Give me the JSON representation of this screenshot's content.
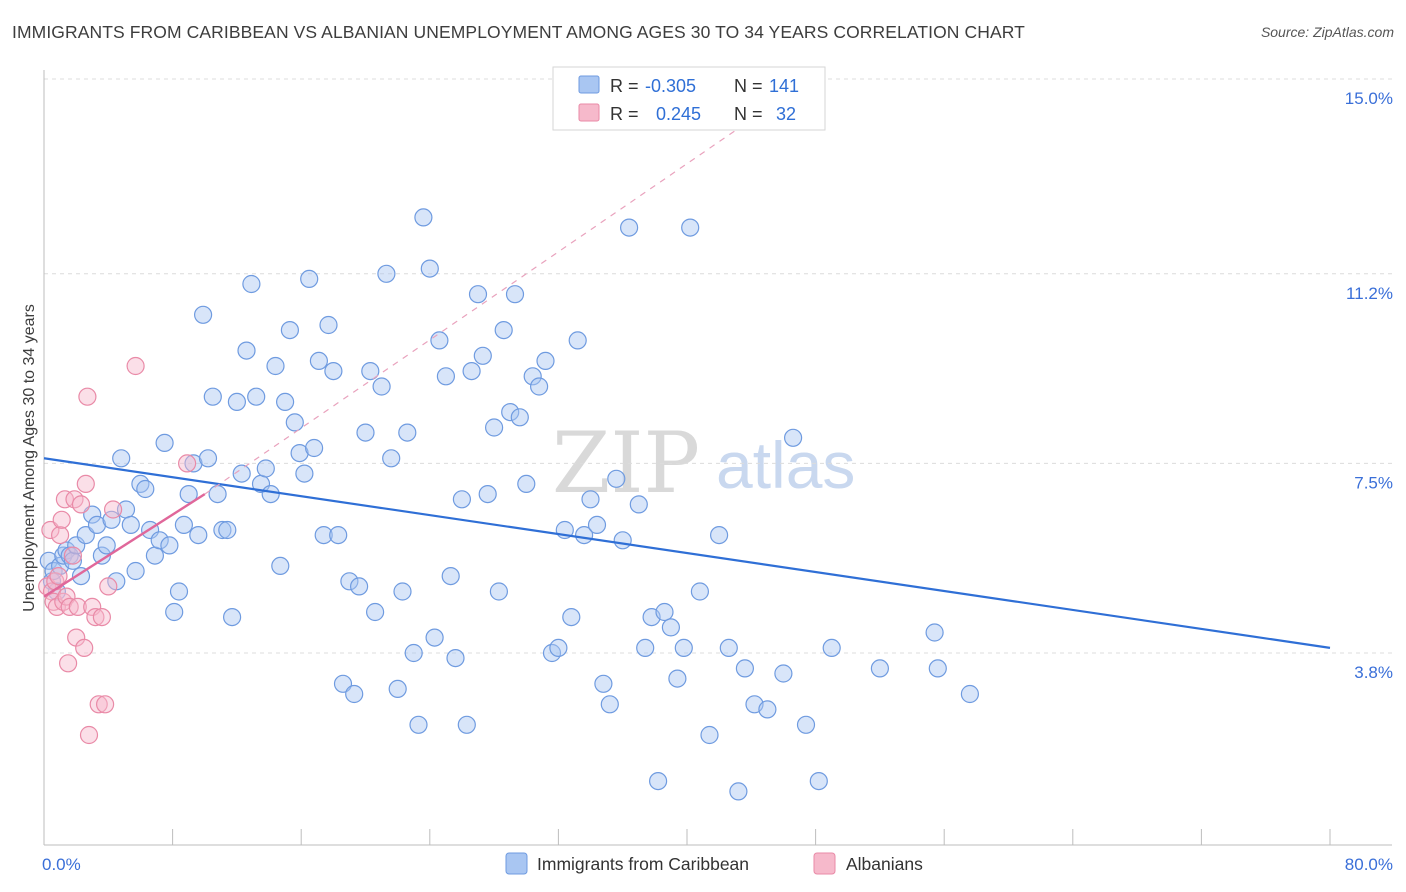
{
  "title": "IMMIGRANTS FROM CARIBBEAN VS ALBANIAN UNEMPLOYMENT AMONG AGES 30 TO 34 YEARS CORRELATION CHART",
  "source": "Source: ZipAtlas.com",
  "watermark": {
    "zip": "ZIP",
    "atlas": "atlas"
  },
  "legend_top": [
    {
      "name": "Immigrants from Caribbean",
      "r_label": "R =",
      "r_value": "-0.305",
      "n_label": "N =",
      "n_value": "141",
      "color": "#a9c6f2",
      "stroke": "#6f9be0"
    },
    {
      "name": "Albanians",
      "r_label": "R =",
      "r_value": "0.245",
      "n_label": "N =",
      "n_value": "32",
      "color": "#f6b9cb",
      "stroke": "#e98aa7"
    }
  ],
  "legend_bottom": [
    {
      "label": "Immigrants from Caribbean",
      "color": "#a9c6f2",
      "stroke": "#6f9be0"
    },
    {
      "label": "Albanians",
      "color": "#f6b9cb",
      "stroke": "#e98aa7"
    }
  ],
  "chart_data": {
    "type": "scatter",
    "title": "IMMIGRANTS FROM CARIBBEAN VS ALBANIAN UNEMPLOYMENT AMONG AGES 30 TO 34 YEARS CORRELATION CHART",
    "xlabel": "",
    "ylabel": "Unemployment Among Ages 30 to 34 years",
    "xlim": [
      0,
      80
    ],
    "ylim": [
      0,
      15.5
    ],
    "x_tick_labels": [
      "0.0%",
      "80.0%"
    ],
    "y_ticks": [
      3.8,
      7.5,
      11.2,
      15.0
    ],
    "y_tick_labels": [
      "3.8%",
      "7.5%",
      "11.2%",
      "15.0%"
    ],
    "grid": true,
    "series": [
      {
        "name": "Immigrants from Caribbean",
        "color": "#a9c6f2",
        "stroke": "#6f9be0",
        "trend": {
          "x": [
            0,
            80
          ],
          "y": [
            7.6,
            3.9
          ],
          "color": "#2f6fd6"
        },
        "points": [
          [
            0.3,
            5.6
          ],
          [
            0.5,
            5.2
          ],
          [
            0.6,
            5.4
          ],
          [
            0.8,
            5.0
          ],
          [
            1.0,
            5.5
          ],
          [
            1.2,
            5.7
          ],
          [
            1.4,
            5.8
          ],
          [
            1.6,
            5.7
          ],
          [
            1.8,
            5.6
          ],
          [
            2.0,
            5.9
          ],
          [
            2.3,
            5.3
          ],
          [
            2.6,
            6.1
          ],
          [
            3.0,
            6.5
          ],
          [
            3.3,
            6.3
          ],
          [
            3.6,
            5.7
          ],
          [
            3.9,
            5.9
          ],
          [
            4.2,
            6.4
          ],
          [
            4.5,
            5.2
          ],
          [
            4.8,
            7.6
          ],
          [
            5.1,
            6.6
          ],
          [
            5.4,
            6.3
          ],
          [
            5.7,
            5.4
          ],
          [
            6.0,
            7.1
          ],
          [
            6.3,
            7.0
          ],
          [
            6.6,
            6.2
          ],
          [
            6.9,
            5.7
          ],
          [
            7.2,
            6.0
          ],
          [
            7.5,
            7.9
          ],
          [
            7.8,
            5.9
          ],
          [
            8.1,
            4.6
          ],
          [
            8.4,
            5.0
          ],
          [
            8.7,
            6.3
          ],
          [
            9.0,
            6.9
          ],
          [
            9.3,
            7.5
          ],
          [
            9.6,
            6.1
          ],
          [
            9.9,
            10.4
          ],
          [
            10.2,
            7.6
          ],
          [
            10.5,
            8.8
          ],
          [
            10.8,
            6.9
          ],
          [
            11.1,
            6.2
          ],
          [
            11.4,
            6.2
          ],
          [
            11.7,
            4.5
          ],
          [
            12.0,
            8.7
          ],
          [
            12.3,
            7.3
          ],
          [
            12.6,
            9.7
          ],
          [
            12.9,
            11.0
          ],
          [
            13.2,
            8.8
          ],
          [
            13.5,
            7.1
          ],
          [
            13.8,
            7.4
          ],
          [
            14.1,
            6.9
          ],
          [
            14.4,
            9.4
          ],
          [
            14.7,
            5.5
          ],
          [
            15.0,
            8.7
          ],
          [
            15.3,
            10.1
          ],
          [
            15.6,
            8.3
          ],
          [
            15.9,
            7.7
          ],
          [
            16.2,
            7.3
          ],
          [
            16.5,
            11.1
          ],
          [
            16.8,
            7.8
          ],
          [
            17.1,
            9.5
          ],
          [
            17.4,
            6.1
          ],
          [
            17.7,
            10.2
          ],
          [
            18.0,
            9.3
          ],
          [
            18.3,
            6.1
          ],
          [
            18.6,
            3.2
          ],
          [
            19.0,
            5.2
          ],
          [
            19.3,
            3.0
          ],
          [
            19.6,
            5.1
          ],
          [
            20.0,
            8.1
          ],
          [
            20.3,
            9.3
          ],
          [
            20.6,
            4.6
          ],
          [
            21.0,
            9.0
          ],
          [
            21.3,
            11.2
          ],
          [
            21.6,
            7.6
          ],
          [
            22.0,
            3.1
          ],
          [
            22.3,
            5.0
          ],
          [
            22.6,
            8.1
          ],
          [
            23.0,
            3.8
          ],
          [
            23.3,
            2.4
          ],
          [
            23.6,
            12.3
          ],
          [
            24.0,
            11.3
          ],
          [
            24.3,
            4.1
          ],
          [
            24.6,
            9.9
          ],
          [
            25.0,
            9.2
          ],
          [
            25.3,
            5.3
          ],
          [
            25.6,
            3.7
          ],
          [
            26.0,
            6.8
          ],
          [
            26.3,
            2.4
          ],
          [
            26.6,
            9.3
          ],
          [
            27.0,
            10.8
          ],
          [
            27.3,
            9.6
          ],
          [
            27.6,
            6.9
          ],
          [
            28.0,
            8.2
          ],
          [
            28.3,
            5.0
          ],
          [
            28.6,
            10.1
          ],
          [
            29.0,
            8.5
          ],
          [
            29.3,
            10.8
          ],
          [
            29.6,
            8.4
          ],
          [
            30.0,
            7.1
          ],
          [
            30.4,
            9.2
          ],
          [
            30.8,
            9.0
          ],
          [
            31.2,
            9.5
          ],
          [
            31.6,
            3.8
          ],
          [
            32.0,
            3.9
          ],
          [
            32.4,
            6.2
          ],
          [
            32.8,
            4.5
          ],
          [
            33.2,
            9.9
          ],
          [
            33.6,
            6.1
          ],
          [
            34.0,
            6.8
          ],
          [
            34.4,
            6.3
          ],
          [
            34.8,
            3.2
          ],
          [
            35.2,
            2.8
          ],
          [
            35.6,
            7.2
          ],
          [
            36.0,
            6.0
          ],
          [
            36.4,
            12.1
          ],
          [
            37.0,
            6.7
          ],
          [
            37.4,
            3.9
          ],
          [
            37.8,
            4.5
          ],
          [
            38.2,
            1.3
          ],
          [
            38.6,
            4.6
          ],
          [
            39.0,
            4.3
          ],
          [
            39.4,
            3.3
          ],
          [
            39.8,
            3.9
          ],
          [
            40.2,
            12.1
          ],
          [
            40.8,
            5.0
          ],
          [
            41.4,
            2.2
          ],
          [
            42.0,
            6.1
          ],
          [
            42.6,
            3.9
          ],
          [
            43.2,
            1.1
          ],
          [
            43.6,
            3.5
          ],
          [
            44.2,
            2.8
          ],
          [
            45.0,
            2.7
          ],
          [
            46.0,
            3.4
          ],
          [
            46.6,
            8.0
          ],
          [
            47.4,
            2.4
          ],
          [
            48.2,
            1.3
          ],
          [
            49.0,
            3.9
          ],
          [
            52.0,
            3.5
          ],
          [
            55.4,
            4.2
          ],
          [
            55.6,
            3.5
          ],
          [
            57.6,
            3.0
          ]
        ]
      },
      {
        "name": "Albanians",
        "color": "#f6b9cb",
        "stroke": "#e98aa7",
        "trend": {
          "x": [
            0,
            10
          ],
          "y": [
            4.9,
            6.9
          ],
          "color": "#e0679a"
        },
        "trend_extended": {
          "x": [
            10,
            43.5
          ],
          "y": [
            6.9,
            14.1
          ],
          "color": "#e9a2bd"
        },
        "points": [
          [
            0.2,
            5.1
          ],
          [
            0.4,
            6.2
          ],
          [
            0.5,
            5.0
          ],
          [
            0.6,
            4.8
          ],
          [
            0.7,
            5.2
          ],
          [
            0.8,
            4.7
          ],
          [
            0.9,
            5.3
          ],
          [
            1.0,
            6.1
          ],
          [
            1.1,
            6.4
          ],
          [
            1.2,
            4.8
          ],
          [
            1.3,
            6.8
          ],
          [
            1.4,
            4.9
          ],
          [
            1.5,
            3.6
          ],
          [
            1.6,
            4.7
          ],
          [
            1.8,
            5.7
          ],
          [
            1.9,
            6.8
          ],
          [
            2.0,
            4.1
          ],
          [
            2.1,
            4.7
          ],
          [
            2.3,
            6.7
          ],
          [
            2.5,
            3.9
          ],
          [
            2.6,
            7.1
          ],
          [
            2.7,
            8.8
          ],
          [
            2.8,
            2.2
          ],
          [
            3.0,
            4.7
          ],
          [
            3.2,
            4.5
          ],
          [
            3.4,
            2.8
          ],
          [
            3.6,
            4.5
          ],
          [
            3.8,
            2.8
          ],
          [
            4.0,
            5.1
          ],
          [
            4.3,
            6.6
          ],
          [
            5.7,
            9.4
          ],
          [
            8.9,
            7.5
          ]
        ]
      }
    ]
  }
}
